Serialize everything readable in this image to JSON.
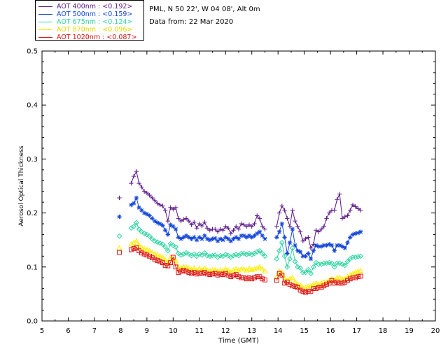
{
  "header": {
    "location": "PML, N 50 22', W 04 08', Alt 0m",
    "date_line": "Data from: 22 Mar 2020"
  },
  "legend": [
    {
      "label": "AOT  400nm : <0.192>",
      "color": "#5b1a8c"
    },
    {
      "label": "AOT  500nm : <0.159>",
      "color": "#1446d9"
    },
    {
      "label": "AOT  675nm : <0.124>",
      "color": "#2fd6a0"
    },
    {
      "label": "AOT  870nm : <0.096>",
      "color": "#ffee00"
    },
    {
      "label": "AOT 1020nm : <0.087>",
      "color": "#dd1111"
    }
  ],
  "chart_data": {
    "type": "scatter",
    "title": "",
    "xlabel": "Time (GMT)",
    "ylabel": "Aerosol Optical Thickness",
    "xlim": [
      5,
      20
    ],
    "ylim": [
      0.0,
      0.5
    ],
    "x_ticks": [
      5,
      6,
      7,
      8,
      9,
      10,
      11,
      12,
      13,
      14,
      15,
      16,
      17,
      18,
      19,
      20
    ],
    "y_ticks": [
      0.0,
      0.1,
      0.2,
      0.3,
      0.4,
      0.5
    ],
    "y_tick_labels": [
      "0.0",
      "0.1",
      "0.2",
      "0.3",
      "0.4",
      "0.5"
    ],
    "grid": false,
    "legend_position": "top-left-outside",
    "series": [
      {
        "name": "AOT  400nm",
        "color": "#5b1a8c",
        "marker": "plus",
        "x": [
          7.95,
          8.4,
          8.5,
          8.6,
          8.7,
          8.8,
          8.9,
          9.0,
          9.1,
          9.2,
          9.3,
          9.4,
          9.5,
          9.6,
          9.7,
          9.8,
          9.9,
          10.0,
          10.1,
          10.2,
          10.3,
          10.4,
          10.5,
          10.6,
          10.7,
          10.8,
          10.9,
          11.0,
          11.1,
          11.2,
          11.3,
          11.4,
          11.5,
          11.6,
          11.7,
          11.8,
          11.9,
          12.0,
          12.1,
          12.2,
          12.3,
          12.4,
          12.5,
          12.6,
          12.7,
          12.8,
          12.9,
          13.0,
          13.1,
          13.2,
          13.3,
          13.4,
          13.5,
          13.95,
          14.05,
          14.15,
          14.25,
          14.35,
          14.45,
          14.55,
          14.65,
          14.75,
          14.85,
          14.95,
          15.05,
          15.15,
          15.25,
          15.35,
          15.45,
          15.55,
          15.65,
          15.75,
          15.85,
          15.95,
          16.05,
          16.15,
          16.25,
          16.35,
          16.45,
          16.55,
          16.65,
          16.75,
          16.85,
          16.95,
          17.05,
          17.15
        ],
        "y": [
          0.228,
          0.255,
          0.268,
          0.277,
          0.255,
          0.248,
          0.24,
          0.237,
          0.233,
          0.228,
          0.223,
          0.218,
          0.215,
          0.213,
          0.205,
          0.185,
          0.21,
          0.207,
          0.21,
          0.19,
          0.185,
          0.188,
          0.19,
          0.185,
          0.178,
          0.183,
          0.172,
          0.18,
          0.176,
          0.183,
          0.172,
          0.168,
          0.17,
          0.17,
          0.165,
          0.17,
          0.168,
          0.175,
          0.172,
          0.162,
          0.168,
          0.175,
          0.17,
          0.18,
          0.178,
          0.175,
          0.178,
          0.175,
          0.18,
          0.195,
          0.19,
          0.175,
          0.17,
          0.175,
          0.2,
          0.213,
          0.205,
          0.19,
          0.175,
          0.205,
          0.185,
          0.175,
          0.165,
          0.148,
          0.152,
          0.155,
          0.135,
          0.142,
          0.168,
          0.165,
          0.17,
          0.175,
          0.19,
          0.2,
          0.205,
          0.205,
          0.225,
          0.235,
          0.19,
          0.193,
          0.195,
          0.205,
          0.215,
          0.212,
          0.208,
          0.205
        ]
      },
      {
        "name": "AOT  500nm",
        "color": "#1446d9",
        "marker": "asterisk",
        "x": [
          7.95,
          8.4,
          8.5,
          8.6,
          8.7,
          8.8,
          8.9,
          9.0,
          9.1,
          9.2,
          9.3,
          9.4,
          9.5,
          9.6,
          9.7,
          9.8,
          9.9,
          10.0,
          10.1,
          10.2,
          10.3,
          10.4,
          10.5,
          10.6,
          10.7,
          10.8,
          10.9,
          11.0,
          11.1,
          11.2,
          11.3,
          11.4,
          11.5,
          11.6,
          11.7,
          11.8,
          11.9,
          12.0,
          12.1,
          12.2,
          12.3,
          12.4,
          12.5,
          12.6,
          12.7,
          12.8,
          12.9,
          13.0,
          13.1,
          13.2,
          13.3,
          13.4,
          13.5,
          13.95,
          14.05,
          14.15,
          14.25,
          14.35,
          14.45,
          14.55,
          14.65,
          14.75,
          14.85,
          14.95,
          15.05,
          15.15,
          15.25,
          15.35,
          15.45,
          15.55,
          15.65,
          15.75,
          15.85,
          15.95,
          16.05,
          16.15,
          16.25,
          16.35,
          16.45,
          16.55,
          16.65,
          16.75,
          16.85,
          16.95,
          17.05,
          17.15
        ],
        "y": [
          0.193,
          0.215,
          0.218,
          0.228,
          0.21,
          0.205,
          0.2,
          0.198,
          0.195,
          0.19,
          0.185,
          0.182,
          0.18,
          0.177,
          0.168,
          0.16,
          0.178,
          0.175,
          0.17,
          0.155,
          0.152,
          0.155,
          0.158,
          0.155,
          0.152,
          0.155,
          0.15,
          0.155,
          0.152,
          0.158,
          0.152,
          0.15,
          0.152,
          0.153,
          0.148,
          0.152,
          0.15,
          0.155,
          0.152,
          0.148,
          0.152,
          0.155,
          0.152,
          0.158,
          0.158,
          0.155,
          0.158,
          0.155,
          0.158,
          0.162,
          0.165,
          0.158,
          0.152,
          0.155,
          0.165,
          0.18,
          0.155,
          0.125,
          0.145,
          0.17,
          0.14,
          0.13,
          0.128,
          0.12,
          0.12,
          0.125,
          0.115,
          0.13,
          0.14,
          0.138,
          0.138,
          0.14,
          0.14,
          0.142,
          0.14,
          0.13,
          0.14,
          0.14,
          0.138,
          0.135,
          0.145,
          0.155,
          0.16,
          0.162,
          0.163,
          0.165
        ]
      },
      {
        "name": "AOT  675nm",
        "color": "#2fd6a0",
        "marker": "diamond",
        "x": [
          7.95,
          8.4,
          8.5,
          8.6,
          8.7,
          8.8,
          8.9,
          9.0,
          9.1,
          9.2,
          9.3,
          9.4,
          9.5,
          9.6,
          9.7,
          9.8,
          9.9,
          10.0,
          10.1,
          10.2,
          10.3,
          10.4,
          10.5,
          10.6,
          10.7,
          10.8,
          10.9,
          11.0,
          11.1,
          11.2,
          11.3,
          11.4,
          11.5,
          11.6,
          11.7,
          11.8,
          11.9,
          12.0,
          12.1,
          12.2,
          12.3,
          12.4,
          12.5,
          12.6,
          12.7,
          12.8,
          12.9,
          13.0,
          13.1,
          13.2,
          13.3,
          13.4,
          13.5,
          13.95,
          14.05,
          14.15,
          14.25,
          14.35,
          14.45,
          14.55,
          14.65,
          14.75,
          14.85,
          14.95,
          15.05,
          15.15,
          15.25,
          15.35,
          15.45,
          15.55,
          15.65,
          15.75,
          15.85,
          15.95,
          16.05,
          16.15,
          16.25,
          16.35,
          16.45,
          16.55,
          16.65,
          16.75,
          16.85,
          16.95,
          17.05,
          17.15
        ],
        "y": [
          0.157,
          0.172,
          0.175,
          0.182,
          0.17,
          0.165,
          0.162,
          0.16,
          0.157,
          0.152,
          0.148,
          0.146,
          0.144,
          0.142,
          0.137,
          0.13,
          0.143,
          0.14,
          0.137,
          0.125,
          0.122,
          0.124,
          0.126,
          0.124,
          0.121,
          0.124,
          0.12,
          0.124,
          0.122,
          0.126,
          0.121,
          0.12,
          0.121,
          0.122,
          0.118,
          0.121,
          0.12,
          0.123,
          0.121,
          0.118,
          0.121,
          0.123,
          0.121,
          0.125,
          0.125,
          0.123,
          0.125,
          0.123,
          0.125,
          0.128,
          0.13,
          0.125,
          0.12,
          0.115,
          0.13,
          0.145,
          0.12,
          0.1,
          0.115,
          0.135,
          0.11,
          0.1,
          0.098,
          0.09,
          0.09,
          0.095,
          0.088,
          0.1,
          0.108,
          0.105,
          0.105,
          0.107,
          0.107,
          0.108,
          0.107,
          0.1,
          0.107,
          0.107,
          0.105,
          0.103,
          0.11,
          0.115,
          0.118,
          0.118,
          0.119,
          0.12
        ]
      },
      {
        "name": "AOT  870nm",
        "color": "#ffee00",
        "marker": "triangle",
        "x": [
          7.95,
          8.4,
          8.5,
          8.6,
          8.7,
          8.8,
          8.9,
          9.0,
          9.1,
          9.2,
          9.3,
          9.4,
          9.5,
          9.6,
          9.7,
          9.8,
          9.9,
          10.0,
          10.1,
          10.2,
          10.3,
          10.4,
          10.5,
          10.6,
          10.7,
          10.8,
          10.9,
          11.0,
          11.1,
          11.2,
          11.3,
          11.4,
          11.5,
          11.6,
          11.7,
          11.8,
          11.9,
          12.0,
          12.1,
          12.2,
          12.3,
          12.4,
          12.5,
          12.6,
          12.7,
          12.8,
          12.9,
          13.0,
          13.1,
          13.2,
          13.3,
          13.4,
          13.5,
          13.95,
          14.05,
          14.15,
          14.25,
          14.35,
          14.45,
          14.55,
          14.65,
          14.75,
          14.85,
          14.95,
          15.05,
          15.15,
          15.25,
          15.35,
          15.45,
          15.55,
          15.65,
          15.75,
          15.85,
          15.95,
          16.05,
          16.15,
          16.25,
          16.35,
          16.45,
          16.55,
          16.65,
          16.75,
          16.85,
          16.95,
          17.05,
          17.15
        ],
        "y": [
          0.135,
          0.142,
          0.145,
          0.148,
          0.14,
          0.136,
          0.134,
          0.132,
          0.13,
          0.127,
          0.124,
          0.122,
          0.12,
          0.118,
          0.113,
          0.108,
          0.118,
          0.115,
          0.112,
          0.1,
          0.098,
          0.1,
          0.1,
          0.098,
          0.095,
          0.098,
          0.094,
          0.097,
          0.095,
          0.098,
          0.094,
          0.093,
          0.094,
          0.095,
          0.092,
          0.094,
          0.093,
          0.096,
          0.094,
          0.091,
          0.094,
          0.096,
          0.094,
          0.096,
          0.096,
          0.094,
          0.097,
          0.095,
          0.096,
          0.098,
          0.1,
          0.096,
          0.092,
          0.082,
          0.092,
          0.09,
          0.08,
          0.075,
          0.078,
          0.08,
          0.072,
          0.068,
          0.066,
          0.062,
          0.062,
          0.064,
          0.065,
          0.068,
          0.07,
          0.068,
          0.07,
          0.072,
          0.072,
          0.075,
          0.078,
          0.075,
          0.08,
          0.08,
          0.078,
          0.078,
          0.082,
          0.085,
          0.088,
          0.09,
          0.092,
          0.093
        ]
      },
      {
        "name": "AOT 1020nm",
        "color": "#dd1111",
        "marker": "square",
        "x": [
          7.95,
          8.4,
          8.5,
          8.6,
          8.7,
          8.8,
          8.9,
          9.0,
          9.1,
          9.2,
          9.3,
          9.4,
          9.5,
          9.6,
          9.7,
          9.8,
          9.9,
          10.0,
          10.1,
          10.2,
          10.3,
          10.4,
          10.5,
          10.6,
          10.7,
          10.8,
          10.9,
          11.0,
          11.1,
          11.2,
          11.3,
          11.4,
          11.5,
          11.6,
          11.7,
          11.8,
          11.9,
          12.0,
          12.1,
          12.2,
          12.3,
          12.4,
          12.5,
          12.6,
          12.7,
          12.8,
          12.9,
          13.0,
          13.1,
          13.2,
          13.3,
          13.4,
          13.5,
          13.95,
          14.05,
          14.15,
          14.25,
          14.35,
          14.45,
          14.55,
          14.65,
          14.75,
          14.85,
          14.95,
          15.05,
          15.15,
          15.25,
          15.35,
          15.45,
          15.55,
          15.65,
          15.75,
          15.85,
          15.95,
          16.05,
          16.15,
          16.25,
          16.35,
          16.45,
          16.55,
          16.65,
          16.75,
          16.85,
          16.95,
          17.05,
          17.15
        ],
        "y": [
          0.127,
          0.132,
          0.134,
          0.136,
          0.13,
          0.126,
          0.124,
          0.122,
          0.12,
          0.117,
          0.114,
          0.112,
          0.11,
          0.108,
          0.103,
          0.102,
          0.108,
          0.118,
          0.1,
          0.09,
          0.092,
          0.094,
          0.092,
          0.09,
          0.088,
          0.09,
          0.087,
          0.089,
          0.088,
          0.09,
          0.087,
          0.086,
          0.087,
          0.088,
          0.085,
          0.087,
          0.086,
          0.088,
          0.085,
          0.082,
          0.084,
          0.086,
          0.082,
          0.08,
          0.08,
          0.078,
          0.08,
          0.078,
          0.08,
          0.082,
          0.082,
          0.078,
          0.076,
          0.075,
          0.088,
          0.085,
          0.07,
          0.072,
          0.068,
          0.065,
          0.064,
          0.062,
          0.057,
          0.055,
          0.053,
          0.055,
          0.055,
          0.06,
          0.06,
          0.062,
          0.062,
          0.065,
          0.068,
          0.07,
          0.075,
          0.07,
          0.072,
          0.07,
          0.07,
          0.072,
          0.075,
          0.078,
          0.08,
          0.08,
          0.082,
          0.083
        ]
      }
    ]
  }
}
